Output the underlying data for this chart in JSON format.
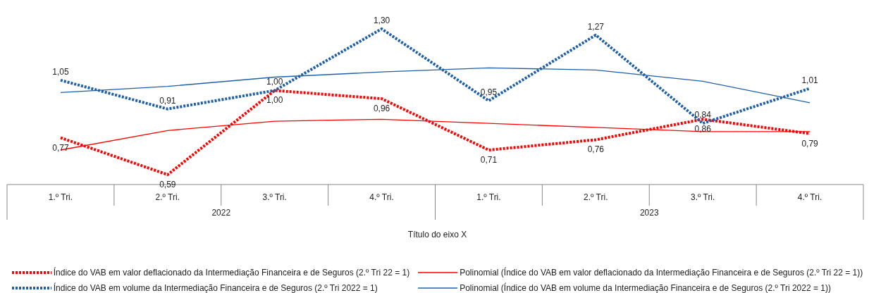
{
  "chart_data": {
    "type": "line",
    "xlabel": "Título do eixo X",
    "categories": [
      "1.º Tri.",
      "2.º Tri.",
      "3.º Tri.",
      "4.º Tri.",
      "1.º Tri.",
      "2.º Tri.",
      "3.º Tri.",
      "4.º Tri."
    ],
    "annotations": [
      "2022",
      "2023"
    ],
    "series": [
      {
        "name": "Índice do VAB em valor deflacionado da Intermediação Financeira e de Seguros (2.º Tri 22 = 1)",
        "color": "#ff0000",
        "line_style": "dotted",
        "values": [
          0.77,
          0.59,
          1.0,
          0.96,
          0.71,
          0.76,
          0.86,
          0.79
        ],
        "value_labels": [
          "0,77",
          "0,59",
          "1,00",
          "0,96",
          "0,71",
          "0,76",
          "0,86",
          "0,79"
        ]
      },
      {
        "name": "Polinomial (Índice do VAB em valor deflacionado da Intermediação Financeira e de Seguros (2.º Tri 22 = 1))",
        "color": "#ff0000",
        "line_style": "solid",
        "values": [
          0.71,
          0.805,
          0.85,
          0.86,
          0.84,
          0.82,
          0.8,
          0.8
        ]
      },
      {
        "name": "Índice do VAB em volume da Intermediação Financeira e de Seguros (2.º Tri 2022 = 1)",
        "color": "#1f5fa8",
        "line_style": "dotted",
        "values": [
          1.05,
          0.91,
          1.0,
          1.3,
          0.95,
          1.27,
          0.84,
          1.01
        ],
        "value_labels": [
          "1,05",
          "0,91",
          "1,00",
          "1,30",
          "0,95",
          "1,27",
          "0,84",
          "1,01"
        ]
      },
      {
        "name": "Polinomial (Índice do VAB em volume da Intermediação Financeira e de Seguros (2.º Tri 2022 = 1))",
        "color": "#1f5fa8",
        "line_style": "solid",
        "values": [
          0.99,
          1.02,
          1.065,
          1.09,
          1.11,
          1.1,
          1.045,
          0.94
        ]
      }
    ],
    "grid": false,
    "marker": "none",
    "legend": "bottom"
  }
}
